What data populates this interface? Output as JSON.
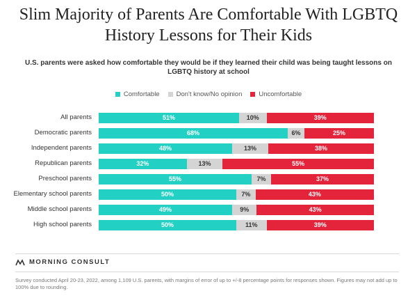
{
  "title_line1": "Slim Majority of Parents Are Comfortable With LGBTQ",
  "title_line2": "History Lessons for Their Kids",
  "subtitle": "U.S. parents were asked how comfortable they would be if they learned their child was being taught lessons on LGBTQ history at school",
  "brand": "MORNING CONSULT",
  "footnote": "Survey conducted April 20-23, 2022, among 1,109 U.S. parents, with margins of error of up to +/-8 percentage points for responses shown. Figures may not add up to 100% due to rounding.",
  "colors": {
    "comfortable": "#23d0c4",
    "dontknow": "#d4d4d4",
    "uncomfortable": "#e3243b"
  },
  "chart_data": {
    "type": "bar",
    "orientation": "horizontal",
    "stacked": true,
    "categories": [
      "All parents",
      "Democratic parents",
      "Independent parents",
      "Republican parents",
      "Preschool parents",
      "Elementary school parents",
      "Middle school parents",
      "High school parents"
    ],
    "series": [
      {
        "name": "Comfortable",
        "values": [
          51,
          68,
          48,
          32,
          55,
          50,
          49,
          50
        ]
      },
      {
        "name": "Don't know/No opinion",
        "values": [
          10,
          6,
          13,
          13,
          7,
          7,
          9,
          11
        ]
      },
      {
        "name": "Uncomfortable",
        "values": [
          39,
          25,
          38,
          55,
          37,
          43,
          43,
          39
        ]
      }
    ],
    "value_suffix": "%",
    "legend": "top-center"
  }
}
